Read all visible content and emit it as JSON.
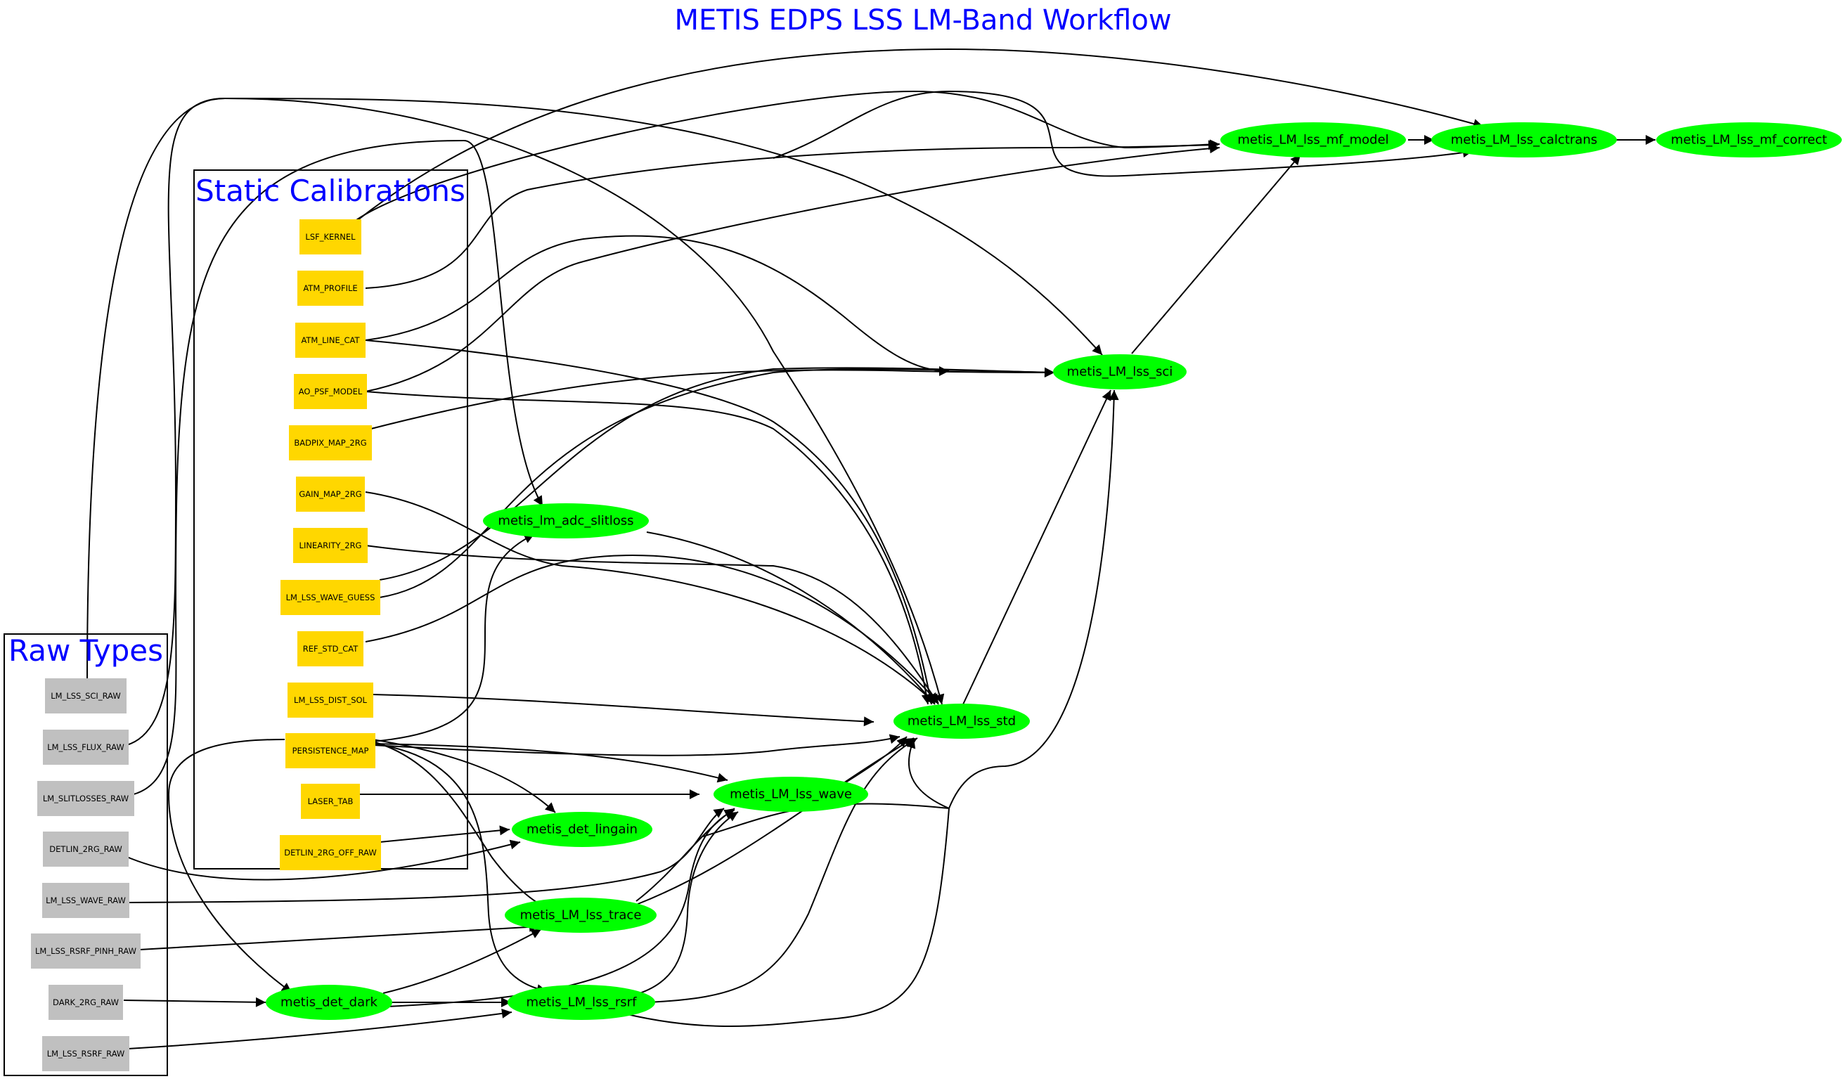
{
  "title": "METIS EDPS LSS LM-Band Workflow",
  "colors": {
    "title": "#0000ff",
    "static_node": "#ffd700",
    "raw_node": "#c0c0c0",
    "task_node": "#00ff00",
    "edge": "#000000"
  },
  "clusters": {
    "static": {
      "label": "Static Calibrations"
    },
    "raw": {
      "label": "Raw Types"
    }
  },
  "static_calibrations": [
    "LSF_KERNEL",
    "ATM_PROFILE",
    "ATM_LINE_CAT",
    "AO_PSF_MODEL",
    "BADPIX_MAP_2RG",
    "GAIN_MAP_2RG",
    "LINEARITY_2RG",
    "LM_LSS_WAVE_GUESS",
    "REF_STD_CAT",
    "LM_LSS_DIST_SOL",
    "PERSISTENCE_MAP",
    "LASER_TAB",
    "DETLIN_2RG_OFF_RAW"
  ],
  "raw_types": [
    "LM_LSS_SCI_RAW",
    "LM_LSS_FLUX_RAW",
    "LM_SLITLOSSES_RAW",
    "DETLIN_2RG_RAW",
    "LM_LSS_WAVE_RAW",
    "LM_LSS_RSRF_PINH_RAW",
    "DARK_2RG_RAW",
    "LM_LSS_RSRF_RAW"
  ],
  "tasks": {
    "mf_model": "metis_LM_lss_mf_model",
    "calctrans": "metis_LM_lss_calctrans",
    "mf_correct": "metis_LM_lss_mf_correct",
    "sci": "metis_LM_lss_sci",
    "adc": "metis_lm_adc_slitloss",
    "std": "metis_LM_lss_std",
    "wave": "metis_LM_lss_wave",
    "lingain": "metis_det_lingain",
    "trace": "metis_LM_lss_trace",
    "dark": "metis_det_dark",
    "rsrf": "metis_LM_lss_rsrf"
  }
}
